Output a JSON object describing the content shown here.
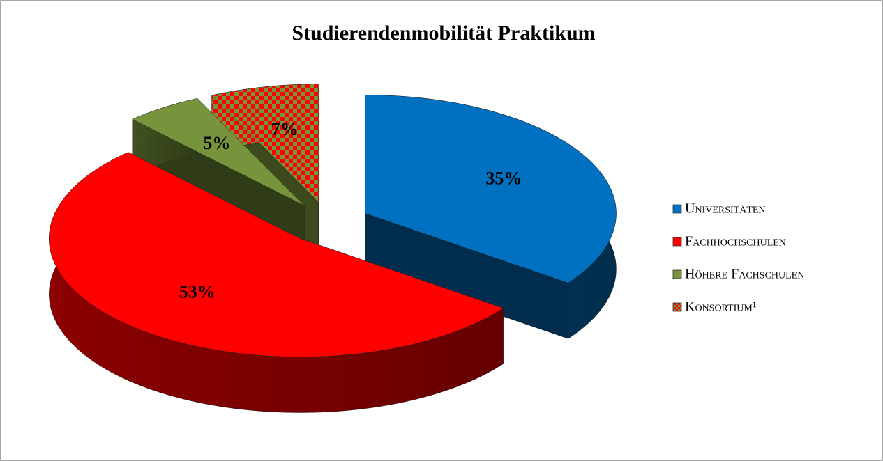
{
  "chart_data": {
    "type": "pie",
    "title": "Studierendenmobilität Praktikum",
    "categories": [
      "Universitäten",
      "Fachhochschulen",
      "Höhere Fachschulen",
      "Konsortium¹"
    ],
    "values": [
      35,
      53,
      5,
      7
    ],
    "value_labels": [
      "35%",
      "53%",
      "5%",
      "7%"
    ],
    "colors": [
      "#0070c0",
      "#ff0000",
      "#77933c",
      [
        "#ff0000",
        "#77933c"
      ]
    ],
    "legend": "right"
  }
}
